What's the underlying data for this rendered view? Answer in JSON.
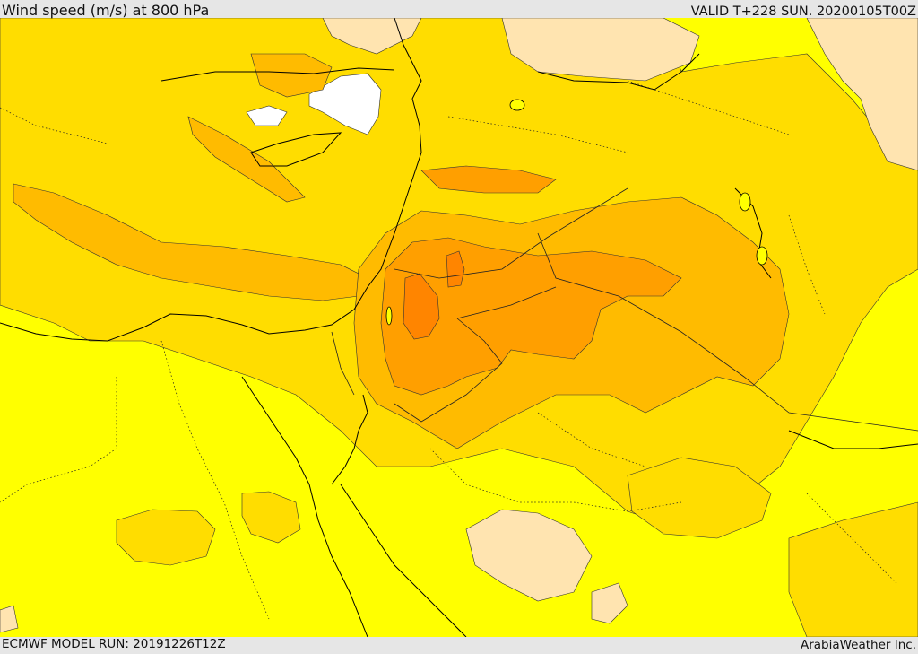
{
  "header": {
    "title": "Wind speed (m/s) at 800 hPa",
    "valid_time": "VALID T+228 SUN. 20200105T00Z"
  },
  "footer": {
    "model_run": "ECMWF MODEL RUN: 20191226T12Z",
    "credit": "ArabiaWeather Inc."
  },
  "map": {
    "field": "wind-speed",
    "level_hpa": 800,
    "colors": {
      "lowest": "#ffffff",
      "low": "#ffe4b0",
      "base": "#ffff00",
      "moderate": "#ffdd00",
      "strong": "#ffbb00",
      "stronger": "#ff9f00",
      "strongest": "#ff8500",
      "coastline": "#000000",
      "borders": "#222222"
    }
  }
}
